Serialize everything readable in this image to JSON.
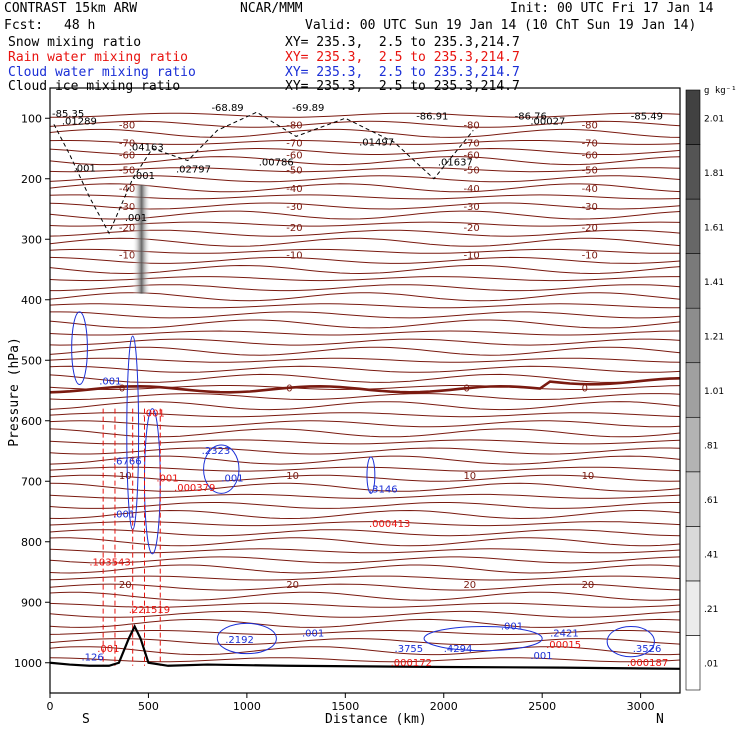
{
  "header": {
    "title_left": "CONTRAST 15km ARW",
    "title_center": "NCAR/MMM",
    "init": "Init: 00 UTC Fri 17 Jan 14",
    "fcst_label": "Fcst:",
    "fcst_value": "48 h",
    "valid": "Valid: 00 UTC Sun 19 Jan 14 (10 ChT Sun 19 Jan 14)",
    "fields": [
      {
        "name": "Snow mixing ratio",
        "xy": "XY= 235.3,  2.5 to 235.3,214.7",
        "color": "#000000"
      },
      {
        "name": "Rain water mixing ratio",
        "xy": "XY= 235.3,  2.5 to 235.3,214.7",
        "color": "#e8120e"
      },
      {
        "name": "Cloud water mixing ratio",
        "xy": "XY= 235.3,  2.5 to 235.3,214.7",
        "color": "#1b2fd6"
      },
      {
        "name": "Cloud ice mixing ratio",
        "xy": "XY= 235.3,  2.5 to 235.3,214.7",
        "color": "#000000"
      }
    ]
  },
  "chart_data": {
    "type": "cross-section",
    "xlabel": "Distance (km)",
    "ylabel": "Pressure (hPa)",
    "xlim": [
      0,
      3200
    ],
    "ylim": [
      1050,
      50
    ],
    "x_ticks": [
      0,
      500,
      1000,
      1500,
      2000,
      2500,
      3000
    ],
    "y_ticks": [
      100,
      200,
      300,
      400,
      500,
      600,
      700,
      800,
      900,
      1000
    ],
    "x_end_labels": {
      "left": "S",
      "right": "N"
    },
    "colorbar": {
      "unit": "g kg⁻¹",
      "ticks": [
        ".01",
        ".21",
        ".41",
        ".61",
        ".81",
        "1.01",
        "1.21",
        "1.41",
        "1.61",
        "1.81",
        "2.01"
      ]
    },
    "temperature_contours": [
      {
        "label": "-80",
        "p": 110
      },
      {
        "label": "-70",
        "p": 140
      },
      {
        "label": "-60",
        "p": 160
      },
      {
        "label": "-50",
        "p": 185
      },
      {
        "label": "-40",
        "p": 215
      },
      {
        "label": "-30",
        "p": 245
      },
      {
        "label": "-20",
        "p": 280
      },
      {
        "label": "-10",
        "p": 325
      },
      {
        "label": "0",
        "p": 545
      },
      {
        "label": "10",
        "p": 690
      },
      {
        "label": "20",
        "p": 870
      }
    ],
    "annotations": [
      {
        "text": "-68.89",
        "x": 820,
        "y": 88,
        "color": "#000000"
      },
      {
        "text": "-69.89",
        "x": 1230,
        "y": 88,
        "color": "#000000"
      },
      {
        "text": "-86.91",
        "x": 1860,
        "y": 102,
        "color": "#000000"
      },
      {
        "text": "-86.76",
        "x": 2360,
        "y": 102,
        "color": "#000000"
      },
      {
        "text": "-85.49",
        "x": 2950,
        "y": 102,
        "color": "#000000"
      },
      {
        "text": ".01289",
        "x": 60,
        "y": 110,
        "color": "#000000"
      },
      {
        "text": "-85.35",
        "x": 10,
        "y": 98,
        "color": "#000000"
      },
      {
        "text": ".04163",
        "x": 400,
        "y": 153,
        "color": "#000000"
      },
      {
        "text": ".01497",
        "x": 1570,
        "y": 145,
        "color": "#000000"
      },
      {
        "text": ".00786",
        "x": 1060,
        "y": 178,
        "color": "#000000"
      },
      {
        "text": ".01637",
        "x": 1970,
        "y": 178,
        "color": "#000000"
      },
      {
        "text": ".00027",
        "x": 2440,
        "y": 110,
        "color": "#000000"
      },
      {
        "text": ".02797",
        "x": 640,
        "y": 190,
        "color": "#000000"
      },
      {
        "text": ".001",
        "x": 120,
        "y": 188,
        "color": "#000000"
      },
      {
        "text": ".001",
        "x": 420,
        "y": 200,
        "color": "#000000"
      },
      {
        "text": ".001",
        "x": 380,
        "y": 270,
        "color": "#000000"
      },
      {
        "text": ".001",
        "x": 250,
        "y": 540,
        "color": "#1b2fd6"
      },
      {
        "text": ".001",
        "x": 470,
        "y": 593,
        "color": "#e8120e"
      },
      {
        "text": ".6766",
        "x": 320,
        "y": 672,
        "color": "#1b2fd6"
      },
      {
        "text": ".2323",
        "x": 770,
        "y": 655,
        "color": "#1b2fd6"
      },
      {
        "text": ".001",
        "x": 870,
        "y": 700,
        "color": "#1b2fd6"
      },
      {
        "text": ".001",
        "x": 540,
        "y": 700,
        "color": "#e8120e"
      },
      {
        "text": ".000379",
        "x": 630,
        "y": 716,
        "color": "#e8120e"
      },
      {
        "text": ".001",
        "x": 320,
        "y": 760,
        "color": "#1b2fd6"
      },
      {
        "text": ".3146",
        "x": 1620,
        "y": 719,
        "color": "#1b2fd6"
      },
      {
        "text": ".000413",
        "x": 1620,
        "y": 776,
        "color": "#e8120e"
      },
      {
        "text": ".103543",
        "x": 200,
        "y": 839,
        "color": "#e8120e"
      },
      {
        "text": ".221519",
        "x": 400,
        "y": 918,
        "color": "#e8120e"
      },
      {
        "text": ".2192",
        "x": 890,
        "y": 967,
        "color": "#1b2fd6"
      },
      {
        "text": ".001",
        "x": 1280,
        "y": 957,
        "color": "#1b2fd6"
      },
      {
        "text": ".001",
        "x": 240,
        "y": 982,
        "color": "#e8120e"
      },
      {
        "text": ".126",
        "x": 160,
        "y": 996,
        "color": "#1b2fd6"
      },
      {
        "text": ".3755",
        "x": 1750,
        "y": 982,
        "color": "#1b2fd6"
      },
      {
        "text": ".000172",
        "x": 1730,
        "y": 1005,
        "color": "#e8120e"
      },
      {
        "text": ".4294",
        "x": 2000,
        "y": 982,
        "color": "#1b2fd6"
      },
      {
        "text": ".001",
        "x": 2290,
        "y": 945,
        "color": "#1b2fd6"
      },
      {
        "text": ".2421",
        "x": 2540,
        "y": 957,
        "color": "#1b2fd6"
      },
      {
        "text": ".00015",
        "x": 2520,
        "y": 976,
        "color": "#e8120e"
      },
      {
        "text": ".001",
        "x": 2440,
        "y": 994,
        "color": "#1b2fd6"
      },
      {
        "text": ".3526",
        "x": 2960,
        "y": 982,
        "color": "#1b2fd6"
      },
      {
        "text": ".000187",
        "x": 2930,
        "y": 1005,
        "color": "#e8120e"
      }
    ],
    "terrain": {
      "x": [
        0,
        100,
        200,
        300,
        350,
        400,
        430,
        460,
        500,
        600,
        800,
        1200,
        2000,
        2600,
        3200
      ],
      "p": [
        1000,
        1003,
        1005,
        1005,
        1000,
        960,
        940,
        960,
        1000,
        1005,
        1003,
        1005,
        1007,
        1008,
        1010
      ]
    }
  }
}
